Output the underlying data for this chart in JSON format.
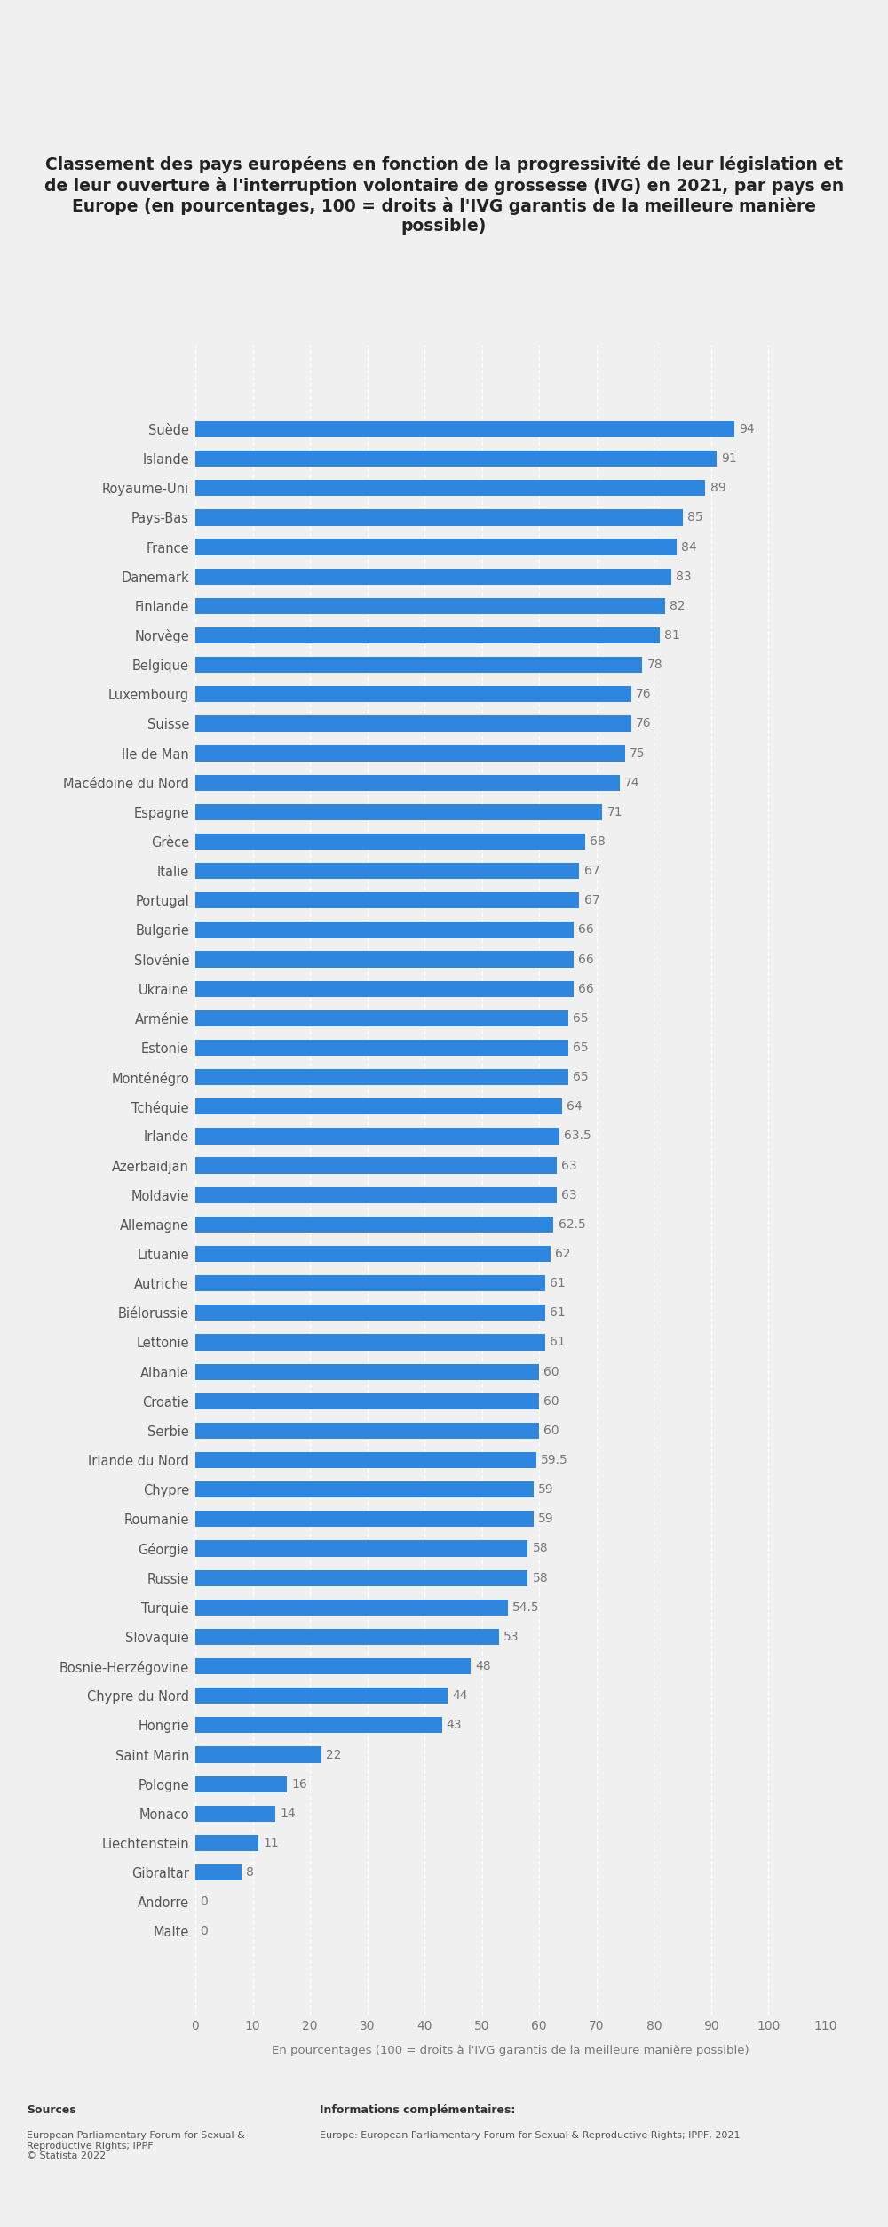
{
  "title": "Classement des pays européens en fonction de la progressivité de leur législation et\nde leur ouverture à l'interruption volontaire de grossesse (IVG) en 2021, par pays en\nEurope (en pourcentages, 100 = droits à l'IVG garantis de la meilleure manière\npossible)",
  "xlabel": "En pourcentages (100 = droits à l'IVG garantis de la meilleure manière possible)",
  "countries": [
    "Suède",
    "Islande",
    "Royaume-Uni",
    "Pays-Bas",
    "France",
    "Danemark",
    "Finlande",
    "Norvège",
    "Belgique",
    "Luxembourg",
    "Suisse",
    "Ile de Man",
    "Macédoine du Nord",
    "Espagne",
    "Grèce",
    "Italie",
    "Portugal",
    "Bulgarie",
    "Slovénie",
    "Ukraine",
    "Arménie",
    "Estonie",
    "Monténégro",
    "Tchéquie",
    "Irlande",
    "Azerbaidjan",
    "Moldavie",
    "Allemagne",
    "Lituanie",
    "Autriche",
    "Biélorussie",
    "Lettonie",
    "Albanie",
    "Croatie",
    "Serbie",
    "Irlande du Nord",
    "Chypre",
    "Roumanie",
    "Géorgie",
    "Russie",
    "Turquie",
    "Slovaquie",
    "Bosnie-Herzégovine",
    "Chypre du Nord",
    "Hongrie",
    "Saint Marin",
    "Pologne",
    "Monaco",
    "Liechtenstein",
    "Gibraltar",
    "Andorre",
    "Malte"
  ],
  "values": [
    94,
    91,
    89,
    85,
    84,
    83,
    82,
    81,
    78,
    76,
    76,
    75,
    74,
    71,
    68,
    67,
    67,
    66,
    66,
    66,
    65,
    65,
    65,
    64,
    63.5,
    63,
    63,
    62.5,
    62,
    61,
    61,
    61,
    60,
    60,
    60,
    59.5,
    59,
    59,
    58,
    58,
    54.5,
    53,
    48,
    44,
    43,
    22,
    16,
    14,
    11,
    8,
    0,
    0
  ],
  "bar_color": "#2e86de",
  "bg_color": "#f0f0f0",
  "plot_bg_color": "#f0f0f0",
  "value_color": "#777777",
  "label_color": "#555555",
  "title_color": "#222222",
  "sources_title": "Sources",
  "sources_body": "European Parliamentary Forum for Sexual &\nReproductive Rights; IPPF\n© Statista 2022",
  "info_title": "Informations complémentaires:",
  "info_body": "Europe: European Parliamentary Forum for Sexual & Reproductive Rights; IPPF, 2021",
  "xlim": [
    0,
    110
  ],
  "xticks": [
    0,
    10,
    20,
    30,
    40,
    50,
    60,
    70,
    80,
    90,
    100,
    110
  ],
  "title_fontsize": 13.5,
  "label_fontsize": 10.5,
  "tick_fontsize": 10,
  "value_fontsize": 10,
  "xlabel_fontsize": 9.5
}
